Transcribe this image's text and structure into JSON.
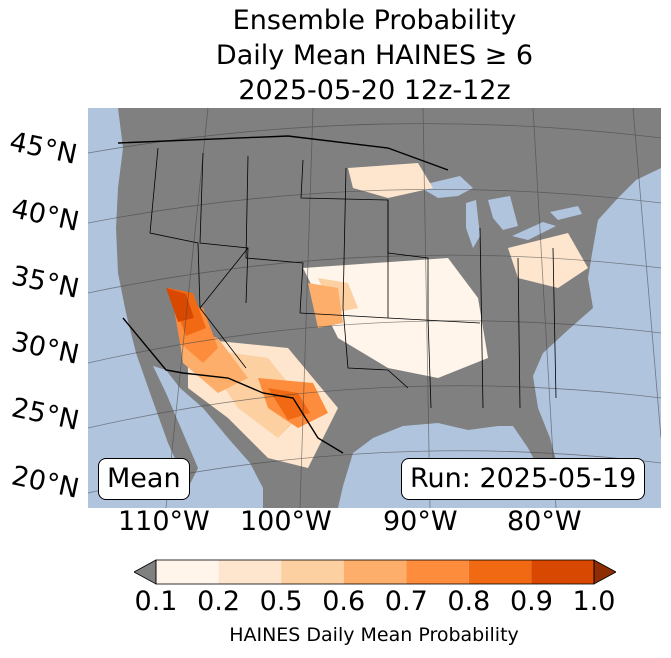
{
  "title": {
    "line1": "Ensemble Probability",
    "line2": "Daily Mean HAINES ≥ 6",
    "line3": "2025-05-20 12z-12z"
  },
  "map": {
    "ocean_color": "#b0c4de",
    "land_no_data_color": "#808080",
    "lat_labels": [
      "45°N",
      "40°N",
      "35°N",
      "30°N",
      "25°N",
      "20°N"
    ],
    "lon_labels": [
      "110°W",
      "100°W",
      "90°W",
      "80°W"
    ]
  },
  "annotations": {
    "stat": "Mean",
    "run": "Run: 2025-05-19"
  },
  "colorbar": {
    "ticks": [
      "0.1",
      "0.2",
      "0.5",
      "0.6",
      "0.7",
      "0.8",
      "0.9",
      "1.0"
    ],
    "colors": [
      "#fff5eb",
      "#fee6ce",
      "#fdd0a2",
      "#fdae6b",
      "#fd8d3c",
      "#f16913",
      "#d94801"
    ],
    "under_color": "#808080",
    "over_color": "#8c2d04",
    "label": "HAINES Daily Mean Probability"
  }
}
